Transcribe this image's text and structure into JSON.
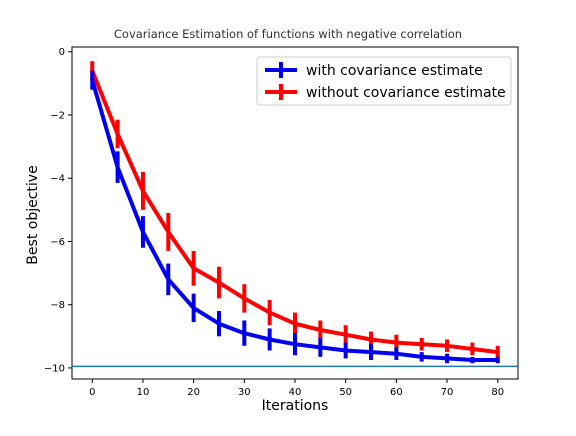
{
  "chart_data": {
    "type": "line",
    "title": "Covariance Estimation of functions with negative correlation",
    "xlabel": "Iterations",
    "ylabel": "Best objective",
    "xlim": [
      -4,
      84
    ],
    "ylim": [
      -10.35,
      0.15
    ],
    "xticks": [
      "0",
      "10",
      "20",
      "30",
      "40",
      "50",
      "60",
      "70",
      "80"
    ],
    "yticks": [
      "0",
      "−2",
      "−4",
      "−6",
      "−8",
      "−10"
    ],
    "x": [
      0,
      5,
      10,
      15,
      20,
      25,
      30,
      35,
      40,
      45,
      50,
      55,
      60,
      65,
      70,
      75,
      80
    ],
    "series": [
      {
        "name": "with covariance estimate",
        "color": "#0000ee",
        "values": [
          -0.9,
          -3.65,
          -5.7,
          -7.2,
          -8.1,
          -8.6,
          -8.9,
          -9.1,
          -9.25,
          -9.35,
          -9.45,
          -9.5,
          -9.55,
          -9.65,
          -9.7,
          -9.75,
          -9.75
        ],
        "errors": [
          0.3,
          0.5,
          0.5,
          0.5,
          0.45,
          0.4,
          0.4,
          0.35,
          0.35,
          0.3,
          0.25,
          0.25,
          0.2,
          0.15,
          0.15,
          0.1,
          0.1
        ]
      },
      {
        "name": "without covariance estimate",
        "color": "#ff0000",
        "values": [
          -0.6,
          -2.6,
          -4.4,
          -5.7,
          -6.85,
          -7.3,
          -7.8,
          -8.25,
          -8.6,
          -8.8,
          -8.95,
          -9.1,
          -9.2,
          -9.25,
          -9.3,
          -9.4,
          -9.5
        ],
        "errors": [
          0.3,
          0.45,
          0.6,
          0.6,
          0.55,
          0.5,
          0.45,
          0.4,
          0.35,
          0.3,
          0.3,
          0.25,
          0.25,
          0.2,
          0.2,
          0.2,
          0.2
        ]
      }
    ],
    "reference_line": {
      "y": -9.95,
      "color": "#1f77b4"
    },
    "legend": {
      "placement": "top-right"
    }
  }
}
